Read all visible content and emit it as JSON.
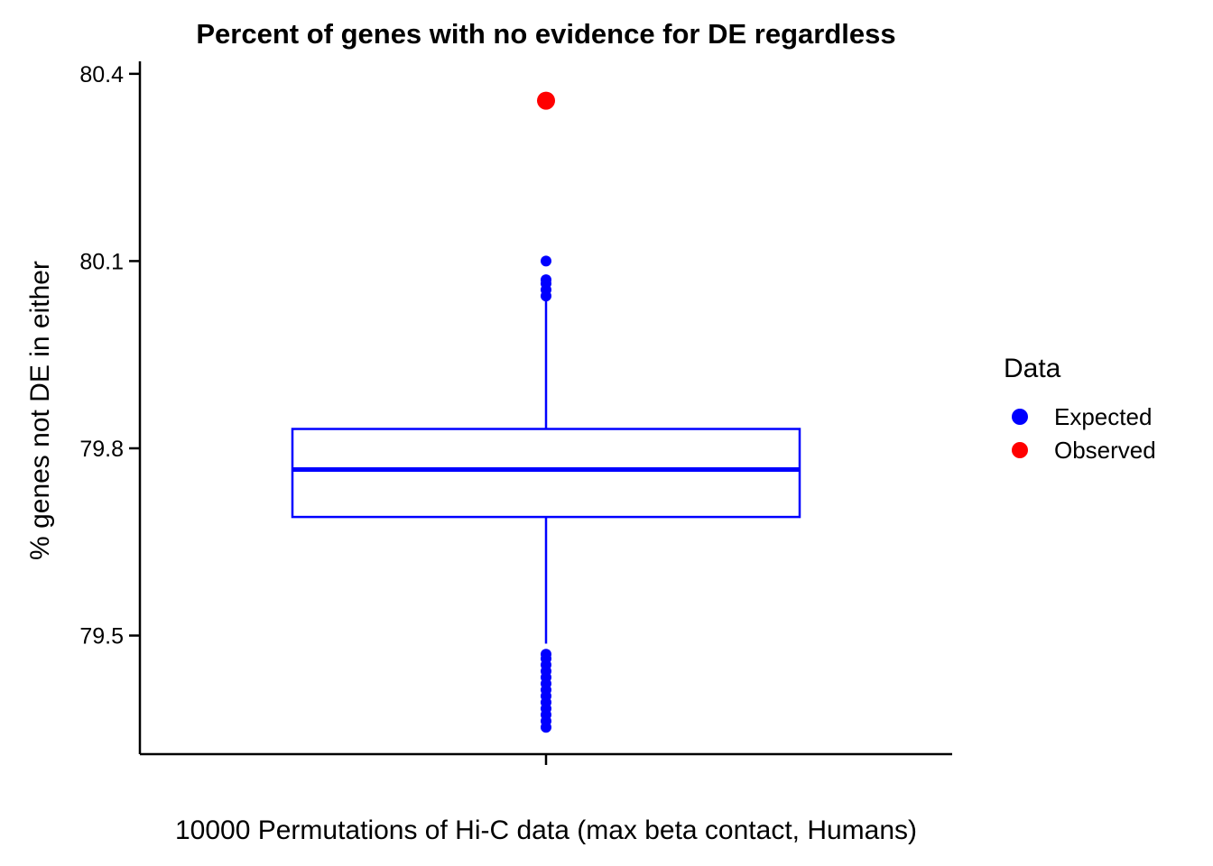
{
  "chart_data": {
    "type": "box",
    "title": "Percent of genes with no evidence for DE regardless",
    "xlabel": "10000 Permutations of Hi-C data (max beta contact, Humans)",
    "ylabel": "% genes not DE in either",
    "ylim": [
      79.31,
      80.42
    ],
    "yticks": [
      79.5,
      79.8,
      80.1,
      80.4
    ],
    "ytick_labels": [
      "79.5",
      "79.8",
      "80.1",
      "80.4"
    ],
    "grid": false,
    "legend": {
      "title": "Data",
      "position": "right",
      "entries": [
        {
          "label": "Expected",
          "color": "#0000FF"
        },
        {
          "label": "Observed",
          "color": "#FF0000"
        }
      ]
    },
    "expected_box": {
      "color": "#0000FF",
      "lower_whisker": 79.487,
      "q1": 79.69,
      "median": 79.766,
      "q3": 79.831,
      "upper_whisker": 80.037,
      "outliers": [
        80.1,
        80.07,
        80.064,
        80.054,
        80.044,
        79.47,
        79.463,
        79.453,
        79.443,
        79.433,
        79.423,
        79.413,
        79.403,
        79.393,
        79.383,
        79.373,
        79.363,
        79.353
      ]
    },
    "observed": {
      "color": "#FF0000",
      "value": 80.357
    }
  }
}
